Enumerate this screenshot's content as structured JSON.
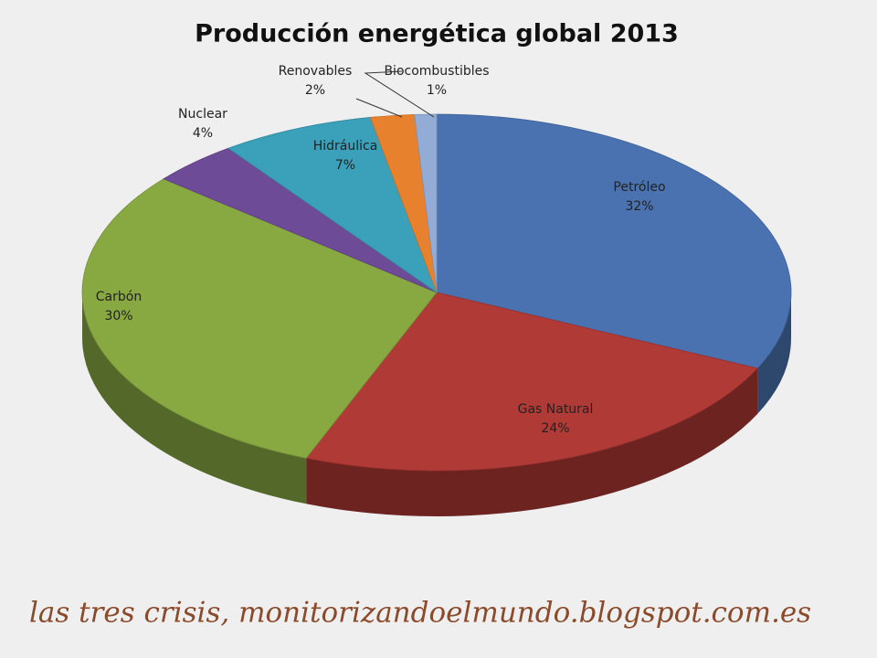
{
  "chart_data": {
    "type": "pie3d",
    "title": "Producción energética global 2013",
    "categories": [
      "Petróleo",
      "Gas Natural",
      "Carbón",
      "Nuclear",
      "Hidráulica",
      "Renovables",
      "Biocombustibles"
    ],
    "values": [
      32,
      24,
      30,
      4,
      7,
      2,
      1
    ],
    "value_labels": [
      "32%",
      "24%",
      "30%",
      "4%",
      "7%",
      "2%",
      "1%"
    ],
    "colors": [
      "#4a72b0",
      "#b03a36",
      "#88a842",
      "#6e4b96",
      "#3ba0b9",
      "#e8812d",
      "#93acd6"
    ],
    "caption": "las tres crisis, monitorizandoelmundo.blogspot.com.es"
  }
}
